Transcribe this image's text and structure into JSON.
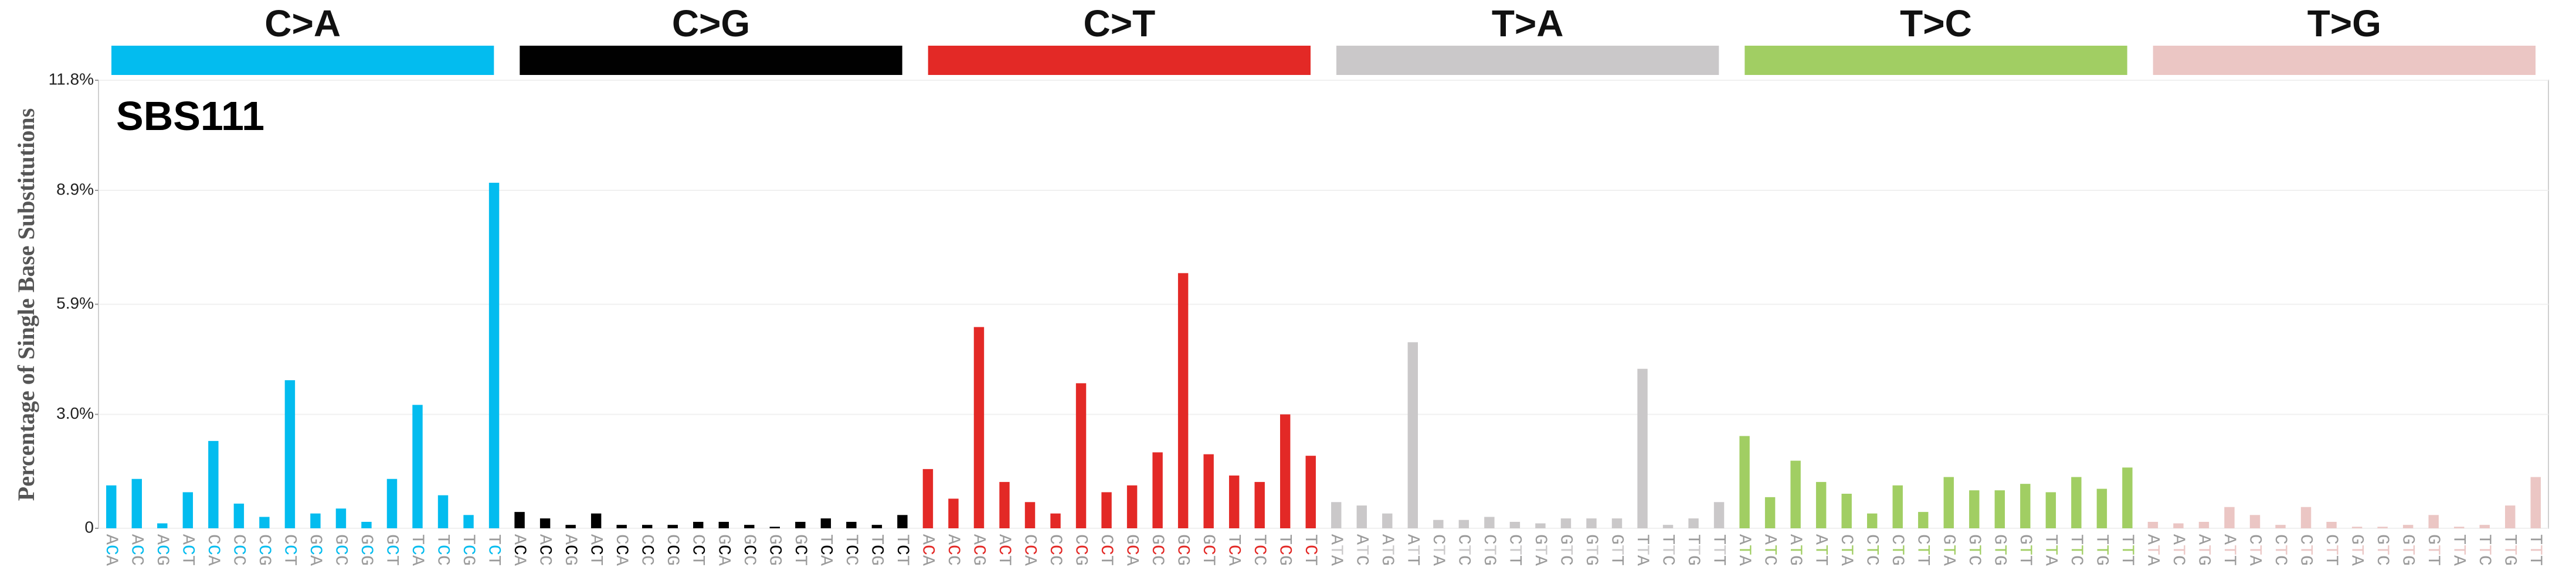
{
  "chart_data": {
    "type": "bar",
    "title": "SBS111",
    "y_label": "Percentage of Single Base Substitutions",
    "groups": [
      {
        "name": "C>A",
        "color": "#03bcef"
      },
      {
        "name": "C>G",
        "color": "#010101"
      },
      {
        "name": "C>T",
        "color": "#e32926"
      },
      {
        "name": "T>A",
        "color": "#cac8c9"
      },
      {
        "name": "T>C",
        "color": "#a1ce63"
      },
      {
        "name": "T>G",
        "color": "#ebc6c4"
      }
    ],
    "categories": [
      "ACA",
      "ACC",
      "ACG",
      "ACT",
      "CCA",
      "CCC",
      "CCG",
      "CCT",
      "GCA",
      "GCC",
      "GCG",
      "GCT",
      "TCA",
      "TCC",
      "TCG",
      "TCT",
      "ACA",
      "ACC",
      "ACG",
      "ACT",
      "CCA",
      "CCC",
      "CCG",
      "CCT",
      "GCA",
      "GCC",
      "GCG",
      "GCT",
      "TCA",
      "TCC",
      "TCG",
      "TCT",
      "ACA",
      "ACC",
      "ACG",
      "ACT",
      "CCA",
      "CCC",
      "CCG",
      "CCT",
      "GCA",
      "GCC",
      "GCG",
      "GCT",
      "TCA",
      "TCC",
      "TCG",
      "TCT",
      "ATA",
      "ATC",
      "ATG",
      "ATT",
      "CTA",
      "CTC",
      "CTG",
      "CTT",
      "GTA",
      "GTC",
      "GTG",
      "GTT",
      "TTA",
      "TTC",
      "TTG",
      "TTT",
      "ATA",
      "ATC",
      "ATG",
      "ATT",
      "CTA",
      "CTC",
      "CTG",
      "CTT",
      "GTA",
      "GTC",
      "GTG",
      "GTT",
      "TTA",
      "TTC",
      "TTG",
      "TTT",
      "ATA",
      "ATC",
      "ATG",
      "ATT",
      "CTA",
      "CTC",
      "CTG",
      "CTT",
      "GTA",
      "GTC",
      "GTG",
      "GTT",
      "TTA",
      "TTC",
      "TTG",
      "TTT"
    ],
    "values": [
      1.13,
      1.3,
      0.13,
      0.95,
      2.3,
      0.65,
      0.3,
      3.9,
      0.39,
      0.52,
      0.17,
      1.3,
      3.25,
      0.87,
      0.35,
      9.1,
      0.43,
      0.26,
      0.09,
      0.39,
      0.09,
      0.09,
      0.09,
      0.17,
      0.17,
      0.09,
      0.04,
      0.17,
      0.26,
      0.17,
      0.09,
      0.35,
      1.56,
      0.78,
      5.3,
      1.22,
      0.69,
      0.39,
      3.82,
      0.95,
      1.13,
      2.0,
      6.72,
      1.95,
      1.39,
      1.22,
      3.0,
      1.91,
      0.69,
      0.6,
      0.39,
      4.9,
      0.22,
      0.22,
      0.3,
      0.17,
      0.13,
      0.26,
      0.26,
      0.26,
      4.2,
      0.09,
      0.26,
      0.69,
      2.43,
      0.82,
      1.78,
      1.22,
      0.91,
      0.39,
      1.13,
      0.43,
      1.35,
      1.0,
      1.0,
      1.17,
      0.95,
      1.35,
      1.04,
      1.6,
      0.17,
      0.13,
      0.17,
      0.56,
      0.35,
      0.09,
      0.56,
      0.17,
      0.04,
      0.04,
      0.09,
      0.35,
      0.04,
      0.09,
      0.6,
      1.35
    ],
    "ylim": [
      0,
      11.8
    ],
    "yticks": [
      {
        "value": 0,
        "label": "0"
      },
      {
        "value": 3.0,
        "label": "3.0%"
      },
      {
        "value": 5.9,
        "label": "5.9%"
      },
      {
        "value": 8.9,
        "label": "8.9%"
      },
      {
        "value": 11.8,
        "label": "11.8%"
      }
    ],
    "grid": true
  }
}
